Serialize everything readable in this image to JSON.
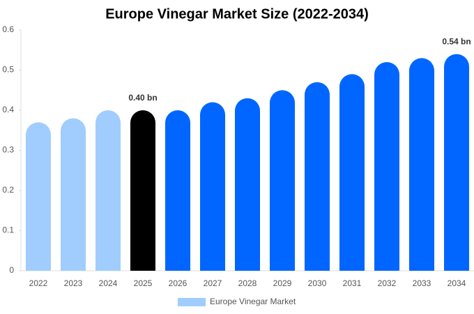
{
  "chart_data": {
    "type": "bar",
    "title": "Europe Vinegar Market Size (2022-2034)",
    "categories": [
      "2022",
      "2023",
      "2024",
      "2025",
      "2026",
      "2027",
      "2028",
      "2029",
      "2030",
      "2031",
      "2032",
      "2033",
      "2034"
    ],
    "series": [
      {
        "name": "Europe Vinegar Market",
        "color": "#a0cdfd",
        "values": [
          0.37,
          0.38,
          0.4,
          0.4,
          0.4,
          0.42,
          0.43,
          0.45,
          0.47,
          0.49,
          0.52,
          0.53,
          0.54
        ],
        "value_labels": [
          null,
          null,
          null,
          "0.40 bn",
          null,
          null,
          null,
          null,
          null,
          null,
          null,
          null,
          "0.54 bn"
        ],
        "colors": [
          "#a0cdfd",
          "#a0cdfd",
          "#a0cdfd",
          "#000000",
          "#0066ff",
          "#0066ff",
          "#0066ff",
          "#0066ff",
          "#0066ff",
          "#0066ff",
          "#0066ff",
          "#0066ff",
          "#0066ff"
        ]
      }
    ],
    "ylim": [
      0,
      0.6
    ],
    "yticks": [
      0,
      0.1,
      0.2,
      0.3,
      0.4,
      0.5,
      0.6
    ],
    "grid": false,
    "legend": "bottom"
  }
}
